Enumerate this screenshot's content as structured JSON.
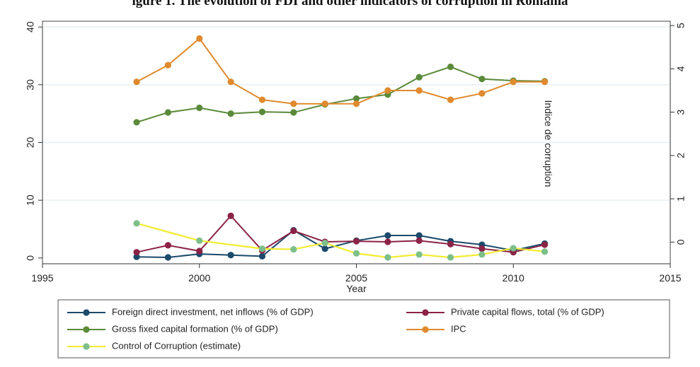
{
  "title": "igure 1. The evolution of FDI and other indicators of corruption in Romania",
  "chart_data": {
    "type": "line",
    "xlabel": "Year",
    "ylabel": "",
    "y2label": "Indice de corruption",
    "xlim": [
      1995,
      2015
    ],
    "xticks": [
      1995,
      2000,
      2005,
      2010,
      2015
    ],
    "ylim": [
      -1,
      41
    ],
    "yticks": [
      0,
      10,
      20,
      30,
      40
    ],
    "y2lim": [
      -0.5,
      5.1
    ],
    "y2ticks": [
      0,
      1,
      2,
      3,
      4,
      5
    ],
    "grid": true,
    "legend_position": "bottom",
    "x": [
      1998,
      1999,
      2000,
      2001,
      2002,
      2003,
      2004,
      2005,
      2006,
      2007,
      2008,
      2009,
      2010,
      2011
    ],
    "series": [
      {
        "name": "Foreign direct investment, net inflows (% of GDP)",
        "color": "#1b4a6b",
        "axis": "left",
        "values": [
          0.2,
          0.1,
          0.7,
          0.5,
          0.3,
          4.8,
          1.6,
          3.0,
          3.9,
          3.9,
          2.9,
          2.3,
          1.3,
          2.5
        ]
      },
      {
        "name": "Private capital flows, total (% of GDP)",
        "color": "#8b2346",
        "axis": "left",
        "values": [
          1.0,
          2.2,
          1.2,
          7.3,
          1.3,
          4.7,
          2.8,
          2.9,
          2.8,
          3.0,
          2.4,
          1.6,
          1.0,
          2.3
        ]
      },
      {
        "name": "Gross fixed capital formation (% of GDP)",
        "color": "#5a8a3a",
        "axis": "left",
        "values": [
          23.5,
          25.2,
          26.0,
          25.0,
          25.3,
          25.2,
          26.6,
          27.6,
          28.3,
          31.3,
          33.1,
          31.0,
          30.7,
          30.6
        ]
      },
      {
        "name": "IPC",
        "color": "#e08a2e",
        "axis": "left",
        "values": [
          30.5,
          33.4,
          38.0,
          30.5,
          27.4,
          26.7,
          26.7,
          26.7,
          29.0,
          29.0,
          27.4,
          28.5,
          30.5,
          30.5
        ]
      },
      {
        "name": "Control of Corruption (estimate)",
        "color": "#f2ec2e",
        "marker_color": "#7dbf8a",
        "axis": "left",
        "values": [
          6.0,
          null,
          3.0,
          null,
          1.6,
          1.5,
          2.6,
          0.8,
          0.1,
          0.6,
          0.1,
          0.6,
          1.7,
          1.1
        ]
      }
    ]
  }
}
